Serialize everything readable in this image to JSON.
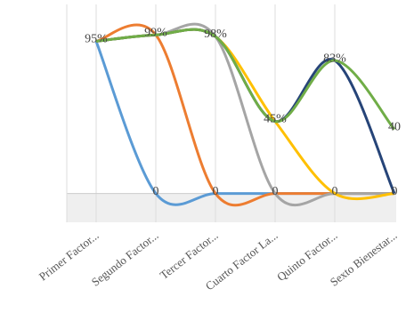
{
  "chart_data": {
    "type": "line",
    "categories": [
      "Primer Factor...",
      "Segundo Factor...",
      "Tercer Factor...",
      "Cuarto Factor La...",
      "Quinto Factor...",
      "Sexto Bienestar..."
    ],
    "series": [
      {
        "color": "#5b9bd5",
        "values": [
          95,
          0,
          0,
          0,
          0,
          0
        ],
        "value_labels": [
          "95%",
          "0",
          null,
          null,
          null,
          null
        ]
      },
      {
        "color": "#ed7d31",
        "values": [
          95,
          99,
          0,
          0,
          0,
          0
        ],
        "value_labels": [
          null,
          "99%",
          "0",
          null,
          null,
          null
        ]
      },
      {
        "color": "#a5a5a5",
        "values": [
          95,
          99,
          98,
          0,
          0,
          0
        ],
        "value_labels": [
          null,
          null,
          "98%",
          "0",
          null,
          null
        ]
      },
      {
        "color": "#ffc000",
        "values": [
          95,
          99,
          98,
          45,
          0,
          0
        ],
        "value_labels": [
          null,
          null,
          null,
          "45%",
          "0",
          null
        ]
      },
      {
        "color": "#264478",
        "values": [
          95,
          99,
          98,
          45,
          83,
          0
        ],
        "value_labels": [
          null,
          null,
          null,
          null,
          "83%",
          "0"
        ]
      },
      {
        "color": "#70ad47",
        "values": [
          95,
          99,
          98,
          45,
          83,
          40
        ],
        "value_labels": [
          null,
          null,
          null,
          null,
          null,
          "40"
        ]
      }
    ],
    "ylim": [
      -18,
      118
    ],
    "grid": true
  }
}
